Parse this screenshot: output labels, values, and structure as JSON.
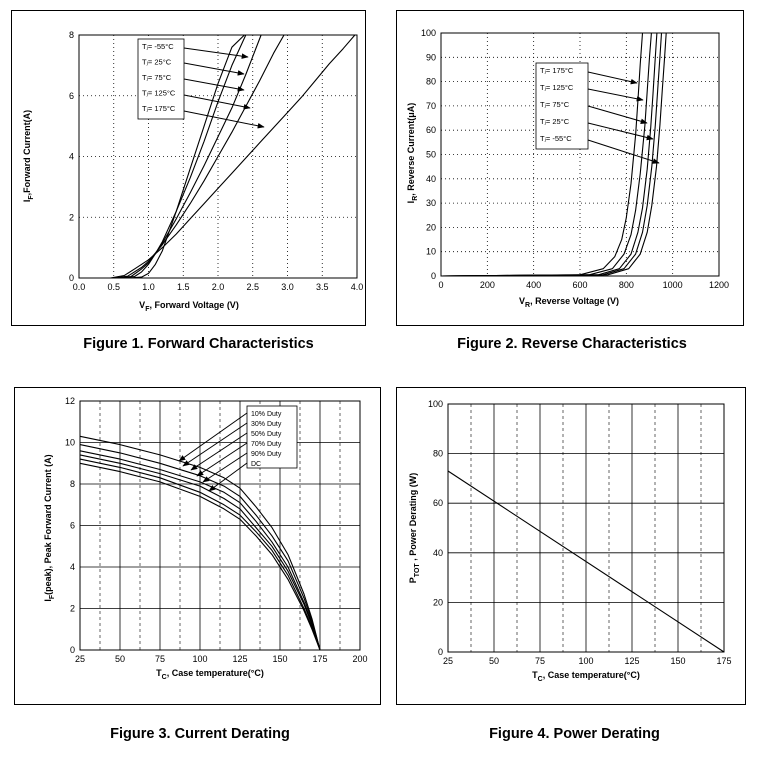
{
  "chart_data": [
    {
      "type": "line",
      "caption": "Figure 1. Forward Characteristics",
      "ylabel_main": "I",
      "ylabel_sub": "F",
      "ylabel_rest": ",Forward Current(A)",
      "xlabel_main": "V",
      "xlabel_sub": "F",
      "xlabel_rest": ", Forward Voltage (V)",
      "xlim": [
        0,
        4
      ],
      "ylim": [
        0,
        8
      ],
      "x_ticks": [
        "0.0",
        "0.5",
        "1.0",
        "1.5",
        "2.0",
        "2.5",
        "3.0",
        "3.5",
        "4.0"
      ],
      "y_ticks": [
        "0",
        "2",
        "4",
        "6",
        "8"
      ],
      "legend": [
        "Tⱼ= -55°C",
        "Tⱼ= 25°C",
        "Tⱼ= 75°C",
        "Tⱼ= 125°C",
        "Tⱼ= 175°C"
      ],
      "series": [
        {
          "name": "Tⱼ= -55°C",
          "x": [
            0,
            0.7,
            0.9,
            1.0,
            1.1,
            1.2,
            1.4,
            1.6,
            1.8,
            2.0,
            2.2,
            2.38
          ],
          "y": [
            0,
            0,
            0.03,
            0.15,
            0.45,
            0.9,
            2.2,
            3.6,
            5.0,
            6.4,
            7.6,
            8.0
          ]
        },
        {
          "name": "Tⱼ= 25°C",
          "x": [
            0,
            0.6,
            0.8,
            0.9,
            1.0,
            1.1,
            1.2,
            1.4,
            1.6,
            1.8,
            2.0,
            2.2,
            2.4
          ],
          "y": [
            0,
            0,
            0.05,
            0.2,
            0.45,
            0.8,
            1.2,
            2.2,
            3.3,
            4.5,
            5.8,
            7.0,
            8.0
          ]
        },
        {
          "name": "Tⱼ= 75°C",
          "x": [
            0,
            0.55,
            0.75,
            0.9,
            1.0,
            1.1,
            1.2,
            1.4,
            1.6,
            1.8,
            2.0,
            2.2,
            2.4,
            2.62
          ],
          "y": [
            0,
            0,
            0.05,
            0.3,
            0.5,
            0.8,
            1.15,
            1.95,
            2.8,
            3.7,
            4.65,
            5.6,
            6.7,
            8.0
          ]
        },
        {
          "name": "Tⱼ= 125°C",
          "x": [
            0,
            0.5,
            0.7,
            0.9,
            1.0,
            1.2,
            1.4,
            1.6,
            1.8,
            2.0,
            2.2,
            2.4,
            2.6,
            2.8,
            2.95
          ],
          "y": [
            0,
            0,
            0.06,
            0.35,
            0.55,
            1.1,
            1.75,
            2.45,
            3.2,
            4.0,
            4.8,
            5.65,
            6.5,
            7.4,
            8.0
          ]
        },
        {
          "name": "Tⱼ= 175°C",
          "x": [
            0,
            0.45,
            0.65,
            0.8,
            1.0,
            1.2,
            1.4,
            1.6,
            1.8,
            2.0,
            2.2,
            2.4,
            2.6,
            2.8,
            3.0,
            3.2,
            3.4,
            3.6,
            3.8,
            3.97
          ],
          "y": [
            0,
            0,
            0.08,
            0.3,
            0.6,
            1.0,
            1.45,
            1.95,
            2.45,
            2.95,
            3.45,
            3.95,
            4.45,
            4.95,
            5.45,
            5.95,
            6.5,
            7.05,
            7.55,
            8.0
          ]
        }
      ]
    },
    {
      "type": "line",
      "caption": "Figure 2. Reverse Characteristics",
      "ylabel_main": "I",
      "ylabel_sub": "R",
      "ylabel_rest": ", Reverse Current(μA)",
      "xlabel_main": "V",
      "xlabel_sub": "R",
      "xlabel_rest": ", Reverse Voltage (V)",
      "xlim": [
        0,
        1200
      ],
      "ylim": [
        0,
        100
      ],
      "x_ticks": [
        "0",
        "200",
        "400",
        "600",
        "800",
        "1000",
        "1200"
      ],
      "y_ticks": [
        "0",
        "10",
        "20",
        "30",
        "40",
        "50",
        "60",
        "70",
        "80",
        "90",
        "100"
      ],
      "legend": [
        "Tⱼ= 175°C",
        "Tⱼ= 125°C",
        "Tⱼ= 75°C",
        "Tⱼ= 25°C",
        "Tⱼ= -55°C"
      ],
      "series": [
        {
          "name": "Tⱼ= 175°C",
          "x": [
            0,
            600,
            700,
            750,
            780,
            800,
            820,
            840,
            850,
            860,
            870
          ],
          "y": [
            0,
            0.5,
            3,
            8,
            15,
            24,
            38,
            58,
            72,
            87,
            100
          ]
        },
        {
          "name": "Tⱼ= 125°C",
          "x": [
            0,
            640,
            740,
            790,
            820,
            840,
            860,
            880,
            890,
            900,
            908
          ],
          "y": [
            0,
            0.5,
            3,
            9,
            17,
            27,
            42,
            62,
            76,
            90,
            100
          ]
        },
        {
          "name": "Tⱼ= 75°C",
          "x": [
            0,
            680,
            770,
            820,
            850,
            870,
            890,
            905,
            915,
            925,
            932
          ],
          "y": [
            0,
            0.5,
            3,
            9,
            18,
            28,
            44,
            61,
            75,
            90,
            100
          ]
        },
        {
          "name": "Tⱼ= 25°C",
          "x": [
            0,
            700,
            790,
            840,
            870,
            890,
            910,
            925,
            935,
            945,
            952
          ],
          "y": [
            0,
            0.5,
            3,
            9,
            18,
            29,
            45,
            62,
            76,
            90,
            100
          ]
        },
        {
          "name": "Tⱼ= -55°C",
          "x": [
            0,
            720,
            810,
            860,
            890,
            910,
            930,
            945,
            955,
            965,
            972
          ],
          "y": [
            0,
            0.5,
            3,
            9,
            18,
            29,
            45,
            62,
            76,
            90,
            100
          ]
        }
      ]
    },
    {
      "type": "line",
      "caption": "Figure 3. Current Derating",
      "ylabel_main": "I",
      "ylabel_sub": "F",
      "ylabel_rest": "(peak), Peak Forward Current (A)",
      "xlabel_main": "T",
      "xlabel_sub": "C",
      "xlabel_rest": ", Case temperature(°C)",
      "xlim": [
        25,
        200
      ],
      "ylim": [
        0,
        12
      ],
      "x_ticks": [
        "25",
        "50",
        "75",
        "100",
        "125",
        "150",
        "175",
        "200"
      ],
      "y_ticks": [
        "0",
        "2",
        "4",
        "6",
        "8",
        "10",
        "12"
      ],
      "legend": [
        "10% Duty",
        "30% Duty",
        "50% Duty",
        "70% Duty",
        "90% Duty",
        "DC"
      ],
      "series": [
        {
          "name": "10% Duty",
          "x": [
            25,
            50,
            75,
            100,
            115,
            125,
            135,
            145,
            155,
            165,
            170,
            175
          ],
          "y": [
            10.3,
            9.9,
            9.4,
            8.8,
            8.3,
            7.8,
            6.9,
            5.9,
            4.6,
            2.7,
            1.5,
            0
          ]
        },
        {
          "name": "30% Duty",
          "x": [
            25,
            50,
            75,
            100,
            115,
            125,
            135,
            145,
            155,
            165,
            170,
            175
          ],
          "y": [
            9.9,
            9.5,
            9.0,
            8.4,
            7.9,
            7.4,
            6.5,
            5.5,
            4.3,
            2.5,
            1.4,
            0
          ]
        },
        {
          "name": "50% Duty",
          "x": [
            25,
            50,
            75,
            100,
            115,
            125,
            135,
            145,
            155,
            165,
            170,
            175
          ],
          "y": [
            9.6,
            9.2,
            8.7,
            8.1,
            7.6,
            7.1,
            6.2,
            5.2,
            4.0,
            2.3,
            1.3,
            0
          ]
        },
        {
          "name": "70% Duty",
          "x": [
            25,
            50,
            75,
            100,
            115,
            125,
            135,
            145,
            155,
            165,
            170,
            175
          ],
          "y": [
            9.4,
            9.0,
            8.5,
            7.9,
            7.3,
            6.8,
            5.9,
            5.0,
            3.8,
            2.2,
            1.2,
            0
          ]
        },
        {
          "name": "90% Duty",
          "x": [
            25,
            50,
            75,
            100,
            115,
            125,
            135,
            145,
            155,
            165,
            170,
            175
          ],
          "y": [
            9.2,
            8.8,
            8.3,
            7.6,
            7.0,
            6.5,
            5.7,
            4.8,
            3.6,
            2.0,
            1.1,
            0
          ]
        },
        {
          "name": "DC",
          "x": [
            25,
            50,
            75,
            100,
            115,
            125,
            135,
            145,
            155,
            165,
            170,
            175
          ],
          "y": [
            9.0,
            8.6,
            8.1,
            7.4,
            6.8,
            6.3,
            5.5,
            4.6,
            3.4,
            1.9,
            1.0,
            0
          ]
        }
      ]
    },
    {
      "type": "line",
      "caption": "Figure 4. Power Derating",
      "ylabel_main": "P",
      "ylabel_sub": "TOT",
      "ylabel_rest": " , Power Derating (W)",
      "xlabel_main": "T",
      "xlabel_sub": "C",
      "xlabel_rest": ", Case temperature(°C)",
      "xlim": [
        25,
        175
      ],
      "ylim": [
        0,
        100
      ],
      "x_ticks": [
        "25",
        "50",
        "75",
        "100",
        "125",
        "150",
        "175"
      ],
      "y_ticks": [
        "0",
        "20",
        "40",
        "60",
        "80",
        "100"
      ],
      "legend": [],
      "series": [
        {
          "name": "",
          "x": [
            25,
            175
          ],
          "y": [
            73,
            0
          ]
        }
      ]
    }
  ]
}
